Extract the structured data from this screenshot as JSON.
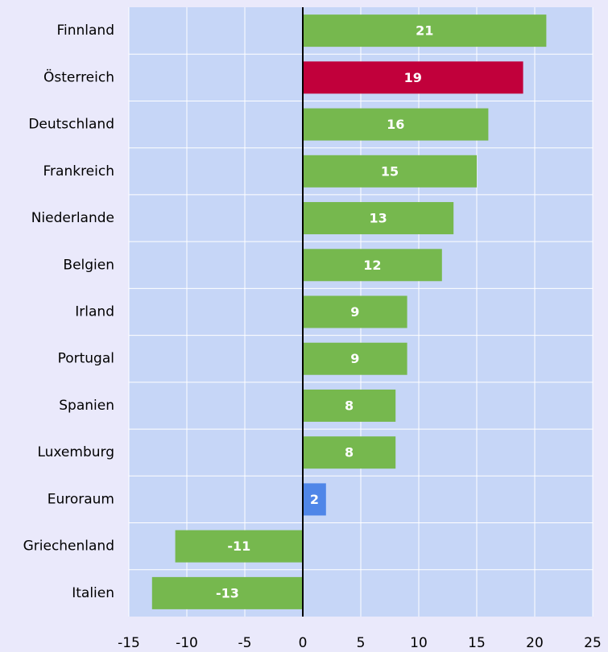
{
  "chart_data": {
    "type": "barh",
    "categories": [
      "Finnland",
      "Österreich",
      "Deutschland",
      "Frankreich",
      "Niederlande",
      "Belgien",
      "Irland",
      "Portugal",
      "Spanien",
      "Luxemburg",
      "Euroraum",
      "Griechenland",
      "Italien"
    ],
    "values": [
      21,
      19,
      16,
      15,
      13,
      12,
      9,
      9,
      8,
      8,
      2,
      -11,
      -13
    ],
    "colors": [
      "#76b84e",
      "#c1003b",
      "#76b84e",
      "#76b84e",
      "#76b84e",
      "#76b84e",
      "#76b84e",
      "#76b84e",
      "#76b84e",
      "#76b84e",
      "#4f86e8",
      "#76b84e",
      "#76b84e"
    ],
    "xlim": [
      -15,
      25
    ],
    "xticks": [
      -15,
      -10,
      -5,
      0,
      5,
      10,
      15,
      20,
      25
    ],
    "grid": true
  }
}
